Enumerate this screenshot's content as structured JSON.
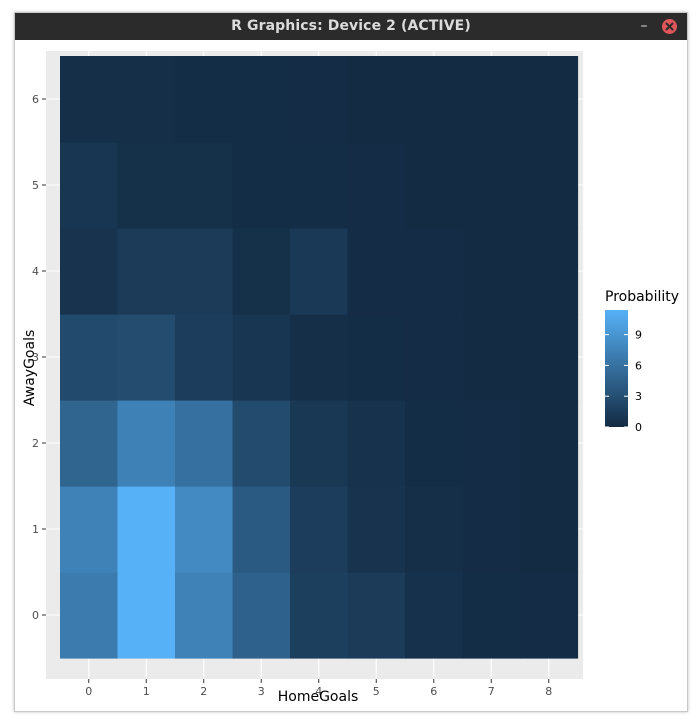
{
  "window": {
    "title": "R Graphics: Device 2 (ACTIVE)",
    "minimize_label": "–",
    "close_icon": "close-icon",
    "accent_color": "#e0575b"
  },
  "chart_data": {
    "type": "heatmap",
    "title": "",
    "xlabel": "HomeGoals",
    "ylabel": "AwayGoals",
    "x": [
      0,
      1,
      2,
      3,
      4,
      5,
      6,
      7,
      8
    ],
    "y": [
      0,
      1,
      2,
      3,
      4,
      5,
      6
    ],
    "x_ticks": [
      "0",
      "1",
      "2",
      "3",
      "4",
      "5",
      "6",
      "7",
      "8"
    ],
    "y_ticks": [
      "0",
      "1",
      "2",
      "3",
      "4",
      "5",
      "6"
    ],
    "values": [
      [
        6.8,
        11.4,
        7.4,
        4.6,
        1.7,
        1.4,
        0.5,
        0.2,
        0.1
      ],
      [
        7.4,
        11.4,
        8.1,
        3.9,
        1.6,
        0.7,
        0.3,
        0.1,
        0.0
      ],
      [
        4.9,
        7.3,
        5.9,
        2.7,
        1.1,
        0.6,
        0.2,
        0.1,
        0.0
      ],
      [
        2.6,
        2.8,
        1.6,
        0.9,
        0.3,
        0.2,
        0.1,
        0.0,
        0.0
      ],
      [
        0.7,
        1.4,
        1.4,
        0.4,
        1.2,
        0.1,
        0.1,
        0.0,
        0.0
      ],
      [
        0.9,
        0.4,
        0.4,
        0.2,
        0.2,
        0.1,
        0.0,
        0.0,
        0.0
      ],
      [
        0.3,
        0.3,
        0.2,
        0.2,
        0.1,
        0.0,
        0.0,
        0.0,
        0.0
      ]
    ],
    "legend": {
      "title": "Probability",
      "ticks": [
        0,
        3,
        6,
        9
      ],
      "tick_labels": [
        "0",
        "3",
        "6",
        "9"
      ],
      "range": [
        0,
        11.4
      ],
      "position": "right"
    },
    "color_scale": {
      "low": "#132b43",
      "high": "#56b1f7"
    },
    "panel_background": "#ebebeb",
    "grid": true
  }
}
